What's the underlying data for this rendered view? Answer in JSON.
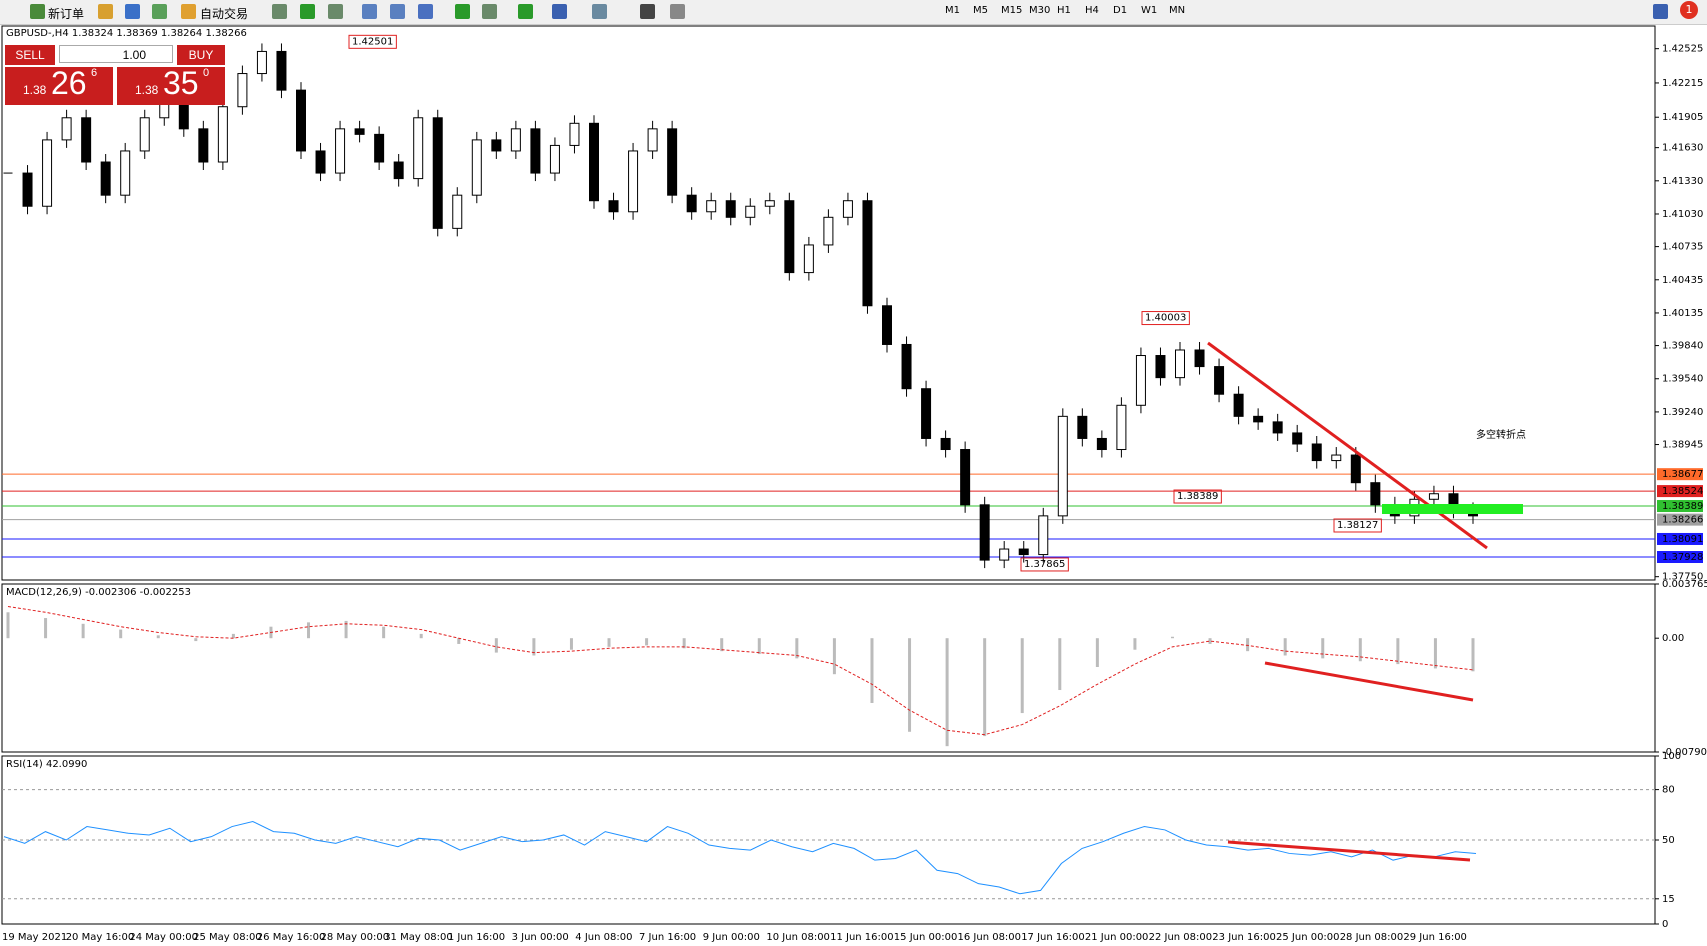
{
  "toolbar": {
    "new_order": "新订单",
    "auto_trade": "自动交易",
    "timeframes": [
      "M1",
      "M5",
      "M15",
      "M30",
      "H1",
      "H4",
      "D1",
      "W1",
      "MN"
    ],
    "alert_count": "1"
  },
  "trade_panel": {
    "sell": "SELL",
    "lot": "1.00",
    "buy": "BUY",
    "bid_prefix": "1.38",
    "bid_big": "26",
    "bid_sup": "6",
    "ask_prefix": "1.38",
    "ask_big": "35",
    "ask_sup": "0"
  },
  "main_chart": {
    "header": "GBPUSD-,H4  1.38324 1.38369 1.38264 1.38266",
    "ylim": [
      1.3772,
      1.4273
    ],
    "yticks": [
      1.42525,
      1.42215,
      1.41905,
      {
        "value": 1.4163,
        "label": "1.41630"
      },
      {
        "value": 1.4133,
        "label": "1.41330"
      },
      {
        "value": 1.4103,
        "label": "1.41030"
      },
      1.40735,
      1.40435,
      1.40135,
      {
        "value": 1.3984,
        "label": "1.39840"
      },
      {
        "value": 1.3954,
        "label": "1.39540"
      },
      {
        "value": 1.3924,
        "label": "1.39240"
      },
      1.38945,
      {
        "value": 1.3775,
        "label": "1.37750"
      }
    ],
    "closes": [
      1.414,
      1.411,
      1.417,
      1.419,
      1.415,
      1.412,
      1.416,
      1.419,
      1.421,
      1.418,
      1.415,
      1.42,
      1.423,
      1.425,
      1.4215,
      1.416,
      1.414,
      1.418,
      1.4175,
      1.415,
      1.4135,
      1.419,
      1.409,
      1.412,
      1.417,
      1.416,
      1.418,
      1.414,
      1.4165,
      1.4185,
      1.4115,
      1.4105,
      1.416,
      1.418,
      1.412,
      1.4105,
      1.4115,
      1.41,
      1.411,
      1.4115,
      1.405,
      1.4075,
      1.41,
      1.4115,
      1.402,
      1.3985,
      1.3945,
      1.39,
      1.389,
      1.384,
      1.379,
      1.38,
      1.3795,
      1.383,
      1.392,
      1.39,
      1.389,
      1.393,
      1.3975,
      1.3955,
      1.398,
      1.3965,
      1.394,
      1.392,
      1.3915,
      1.3905,
      1.3895,
      1.388,
      1.3885,
      1.386,
      1.384,
      1.383,
      1.3845,
      1.385,
      1.3835,
      1.383
    ],
    "levels": [
      {
        "price": 1.38677,
        "color": "#ff6a2a"
      },
      {
        "price": 1.38524,
        "color": "#e02020"
      },
      {
        "price": 1.38389,
        "color": "#30c030"
      },
      {
        "price": 1.38266,
        "color": "#a0a0a0"
      },
      {
        "price": 1.38091,
        "color": "#1a1aff"
      },
      {
        "price": 1.37928,
        "color": "#1a1aff"
      }
    ],
    "annotations": [
      1.42501,
      1.40003,
      1.38389,
      1.38127,
      1.37865
    ],
    "note": "多空转折点",
    "note_color": "#33cc33"
  },
  "macd": {
    "label": "MACD(12,26,9) -0.002306 -0.002253",
    "ylim": [
      -0.007905,
      0.003765
    ],
    "yticks": [
      0.003765,
      {
        "value": 0,
        "label": "0.00"
      },
      -0.007905
    ],
    "histogram": [
      0.0018,
      0.0014,
      0.001,
      0.0006,
      0.0002,
      -0.0002,
      0.0003,
      0.0008,
      0.0011,
      0.0012,
      0.0008,
      0.0003,
      -0.0004,
      -0.001,
      -0.0012,
      -0.0008,
      -0.0006,
      -0.0005,
      -0.0007,
      -0.0009,
      -0.0011,
      -0.0014,
      -0.0025,
      -0.0045,
      -0.0065,
      -0.0075,
      -0.0068,
      -0.0052,
      -0.0036,
      -0.002,
      -0.0008,
      0.0001,
      -0.0004,
      -0.0009,
      -0.0012,
      -0.0014,
      -0.0016,
      -0.0018,
      -0.0021,
      -0.0023
    ],
    "signal": [
      0.0022,
      0.0018,
      0.0013,
      0.0008,
      0.0004,
      0.0001,
      0,
      0.0004,
      0.0008,
      0.001,
      0.0009,
      0.0006,
      0,
      -0.0006,
      -0.001,
      -0.0009,
      -0.0007,
      -0.0006,
      -0.0006,
      -0.0008,
      -0.001,
      -0.0012,
      -0.0018,
      -0.0032,
      -0.005,
      -0.0064,
      -0.0067,
      -0.006,
      -0.0047,
      -0.0032,
      -0.0018,
      -0.0006,
      -0.0002,
      -0.0005,
      -0.0009,
      -0.0011,
      -0.0013,
      -0.0016,
      -0.0019,
      -0.0022
    ]
  },
  "rsi": {
    "label": "RSI(14) 42.0990",
    "ylim": [
      0,
      100
    ],
    "yticks": [
      100,
      80,
      50,
      15,
      0
    ],
    "levels": [
      80,
      50,
      15
    ],
    "values": [
      52,
      48,
      55,
      50,
      58,
      56,
      54,
      53,
      57,
      49,
      52,
      58,
      61,
      55,
      54,
      50,
      48,
      52,
      49,
      46,
      51,
      50,
      44,
      48,
      52,
      49,
      50,
      53,
      47,
      55,
      52,
      49,
      58,
      54,
      47,
      45,
      44,
      50,
      46,
      43,
      48,
      45,
      38,
      39,
      44,
      32,
      30,
      24,
      22,
      18,
      20,
      36,
      45,
      49,
      54,
      58,
      56,
      50,
      47,
      46,
      44,
      45,
      42,
      41,
      43,
      40,
      44,
      38,
      41,
      40,
      43,
      42
    ]
  },
  "time_labels": [
    "19 May 2021",
    "20 May 16:00",
    "24 May 00:00",
    "25 May 08:00",
    "26 May 16:00",
    "28 May 00:00",
    "31 May 08:00",
    "1 Jun 16:00",
    "3 Jun 00:00",
    "4 Jun 08:00",
    "7 Jun 16:00",
    "9 Jun 00:00",
    "10 Jun 08:00",
    "11 Jun 16:00",
    "15 Jun 00:00",
    "16 Jun 08:00",
    "17 Jun 16:00",
    "21 Jun 00:00",
    "22 Jun 08:00",
    "23 Jun 16:00",
    "25 Jun 00:00",
    "28 Jun 08:00",
    "29 Jun 16:00"
  ]
}
